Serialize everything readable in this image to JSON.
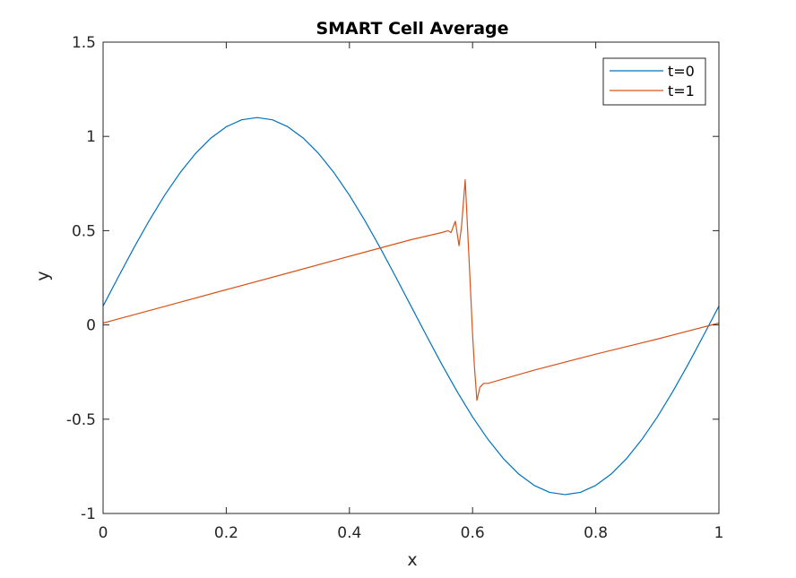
{
  "chart_data": {
    "type": "line",
    "title": "SMART Cell Average",
    "xlabel": "x",
    "ylabel": "y",
    "xlim": [
      0,
      1
    ],
    "ylim": [
      -1,
      1.5
    ],
    "xticks": [
      0,
      0.2,
      0.4,
      0.6,
      0.8,
      1
    ],
    "xtick_labels": [
      "0",
      "0.2",
      "0.4",
      "0.6",
      "0.8",
      "1"
    ],
    "yticks": [
      -1,
      -0.5,
      0,
      0.5,
      1,
      1.5
    ],
    "ytick_labels": [
      "-1",
      "-0.5",
      "0",
      "0.5",
      "1",
      "1.5"
    ],
    "grid": false,
    "legend_position": "top-right",
    "series": [
      {
        "name": "t=0",
        "color": "#0072BD",
        "x": [
          0,
          0.025,
          0.05,
          0.075,
          0.1,
          0.125,
          0.15,
          0.175,
          0.2,
          0.225,
          0.25,
          0.275,
          0.3,
          0.325,
          0.35,
          0.375,
          0.4,
          0.425,
          0.45,
          0.475,
          0.5,
          0.525,
          0.55,
          0.575,
          0.6,
          0.625,
          0.65,
          0.675,
          0.7,
          0.725,
          0.75,
          0.775,
          0.8,
          0.825,
          0.85,
          0.875,
          0.9,
          0.925,
          0.95,
          0.975,
          1
        ],
        "y": [
          0.1,
          0.256,
          0.409,
          0.554,
          0.688,
          0.807,
          0.909,
          0.991,
          1.051,
          1.088,
          1.1,
          1.088,
          1.051,
          0.991,
          0.909,
          0.807,
          0.688,
          0.554,
          0.409,
          0.256,
          0.1,
          -0.056,
          -0.209,
          -0.354,
          -0.488,
          -0.607,
          -0.709,
          -0.791,
          -0.851,
          -0.888,
          -0.9,
          -0.888,
          -0.851,
          -0.791,
          -0.709,
          -0.607,
          -0.488,
          -0.354,
          -0.209,
          -0.056,
          0.1
        ]
      },
      {
        "name": "t=1",
        "color": "#D95319",
        "x": [
          0,
          0.1,
          0.2,
          0.3,
          0.4,
          0.5,
          0.55,
          0.56,
          0.565,
          0.572,
          0.578,
          0.582,
          0.588,
          0.595,
          0.6,
          0.603,
          0.607,
          0.612,
          0.618,
          0.625,
          0.7,
          0.8,
          0.9,
          1
        ],
        "y": [
          0.01,
          0.098,
          0.187,
          0.275,
          0.364,
          0.452,
          0.49,
          0.5,
          0.49,
          0.55,
          0.42,
          0.52,
          0.77,
          0.3,
          -0.05,
          -0.22,
          -0.4,
          -0.33,
          -0.31,
          -0.31,
          -0.24,
          -0.155,
          -0.075,
          0.01
        ]
      }
    ]
  }
}
